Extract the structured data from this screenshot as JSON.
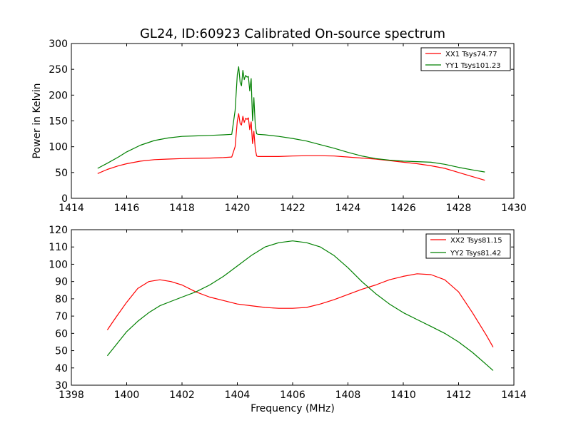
{
  "title": "GL24, ID:60923 Calibrated On-source spectrum",
  "colors": {
    "xx": "#ff0000",
    "yy": "#008000",
    "axis": "#000000",
    "background": "#ffffff"
  },
  "chart_data": [
    {
      "type": "line",
      "title": "GL24, ID:60923 Calibrated On-source spectrum",
      "xlabel": "",
      "ylabel": "Power in Kelvin",
      "xlim": [
        1414,
        1430
      ],
      "ylim": [
        0,
        300
      ],
      "xticks": [
        1414,
        1416,
        1418,
        1420,
        1422,
        1424,
        1426,
        1428,
        1430
      ],
      "yticks": [
        0,
        50,
        100,
        150,
        200,
        250,
        300
      ],
      "grid": false,
      "legend_position": "top-right",
      "series": [
        {
          "name": "XX1 Tsys74.77",
          "color": "#ff0000",
          "x": [
            1414.95,
            1415.3,
            1415.7,
            1416.0,
            1416.5,
            1417.0,
            1417.5,
            1418.0,
            1418.5,
            1419.0,
            1419.5,
            1419.8,
            1419.92,
            1420.0,
            1420.05,
            1420.1,
            1420.15,
            1420.2,
            1420.25,
            1420.3,
            1420.35,
            1420.4,
            1420.45,
            1420.5,
            1420.55,
            1420.6,
            1420.65,
            1420.7,
            1420.75,
            1421.0,
            1421.5,
            1422.0,
            1422.5,
            1423.0,
            1423.5,
            1424.0,
            1424.5,
            1425.0,
            1425.5,
            1426.0,
            1426.5,
            1427.0,
            1427.5,
            1428.0,
            1428.5,
            1428.95
          ],
          "y": [
            48,
            56,
            63,
            67,
            72,
            75,
            76,
            77,
            77.5,
            78,
            79,
            80,
            100,
            150,
            164,
            145,
            142,
            159,
            147,
            155,
            153,
            156,
            133,
            148,
            106,
            130,
            95,
            82,
            81,
            81,
            81,
            82,
            82.5,
            82.5,
            82,
            80,
            78,
            76,
            73,
            70,
            67,
            63,
            58,
            50,
            42,
            35
          ]
        },
        {
          "name": "YY1 Tsys101.23",
          "color": "#008000",
          "x": [
            1414.95,
            1415.3,
            1415.7,
            1416.0,
            1416.5,
            1417.0,
            1417.5,
            1418.0,
            1418.5,
            1419.0,
            1419.5,
            1419.8,
            1419.92,
            1420.0,
            1420.05,
            1420.1,
            1420.15,
            1420.2,
            1420.25,
            1420.3,
            1420.35,
            1420.4,
            1420.45,
            1420.5,
            1420.55,
            1420.6,
            1420.65,
            1420.7,
            1420.75,
            1421.0,
            1421.5,
            1422.0,
            1422.5,
            1423.0,
            1423.5,
            1424.0,
            1424.5,
            1425.0,
            1425.5,
            1426.0,
            1426.5,
            1427.0,
            1427.5,
            1428.0,
            1428.5,
            1428.95
          ],
          "y": [
            58,
            68,
            80,
            90,
            103,
            112,
            117,
            120,
            121,
            122,
            123,
            124,
            170,
            240,
            255,
            225,
            218,
            248,
            230,
            238,
            235,
            236,
            208,
            232,
            150,
            195,
            140,
            125,
            124,
            123,
            120,
            116,
            111,
            104,
            97,
            89,
            82,
            77,
            74,
            72,
            71,
            70,
            66,
            60,
            55,
            51
          ]
        }
      ]
    },
    {
      "type": "line",
      "title": "",
      "xlabel": "Frequency (MHz)",
      "ylabel": "",
      "xlim": [
        1398,
        1414
      ],
      "ylim": [
        30,
        120
      ],
      "xticks": [
        1398,
        1400,
        1402,
        1404,
        1406,
        1408,
        1410,
        1412,
        1414
      ],
      "yticks": [
        30,
        40,
        50,
        60,
        70,
        80,
        90,
        100,
        110,
        120
      ],
      "grid": false,
      "legend_position": "top-right",
      "series": [
        {
          "name": "XX2 Tsys81.15",
          "color": "#ff0000",
          "x": [
            1399.3,
            1399.6,
            1400.0,
            1400.4,
            1400.8,
            1401.2,
            1401.6,
            1402.0,
            1402.5,
            1403.0,
            1403.5,
            1404.0,
            1404.5,
            1405.0,
            1405.5,
            1406.0,
            1406.5,
            1407.0,
            1407.5,
            1408.0,
            1408.5,
            1409.0,
            1409.5,
            1410.0,
            1410.5,
            1411.0,
            1411.5,
            1412.0,
            1412.5,
            1413.0,
            1413.25
          ],
          "y": [
            62,
            69,
            78,
            86,
            90,
            91,
            90,
            88,
            84,
            81,
            79,
            77,
            76,
            75,
            74.5,
            74.5,
            75,
            77,
            79.5,
            82.5,
            85.5,
            88,
            91,
            93,
            94.5,
            94,
            91,
            84,
            72,
            59,
            52
          ]
        },
        {
          "name": "YY2 Tsys81.42",
          "color": "#008000",
          "x": [
            1399.3,
            1399.6,
            1400.0,
            1400.4,
            1400.8,
            1401.2,
            1401.6,
            1402.0,
            1402.5,
            1403.0,
            1403.5,
            1404.0,
            1404.5,
            1405.0,
            1405.5,
            1406.0,
            1406.5,
            1407.0,
            1407.5,
            1408.0,
            1408.5,
            1409.0,
            1409.5,
            1410.0,
            1410.5,
            1411.0,
            1411.5,
            1412.0,
            1412.5,
            1413.0,
            1413.25
          ],
          "y": [
            47,
            53,
            61,
            67,
            72,
            76,
            78.5,
            81,
            84,
            88,
            93,
            99,
            105,
            110,
            112.5,
            113.5,
            112.5,
            110,
            105,
            98,
            90,
            83,
            77,
            72,
            68,
            64,
            60,
            55,
            49,
            42,
            38.5
          ]
        }
      ]
    }
  ]
}
